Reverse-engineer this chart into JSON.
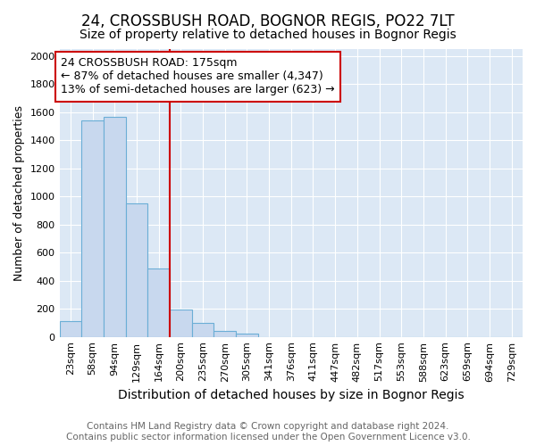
{
  "title": "24, CROSSBUSH ROAD, BOGNOR REGIS, PO22 7LT",
  "subtitle": "Size of property relative to detached houses in Bognor Regis",
  "xlabel": "Distribution of detached houses by size in Bognor Regis",
  "ylabel": "Number of detached properties",
  "categories": [
    "23sqm",
    "58sqm",
    "94sqm",
    "129sqm",
    "164sqm",
    "200sqm",
    "235sqm",
    "270sqm",
    "305sqm",
    "341sqm",
    "376sqm",
    "411sqm",
    "447sqm",
    "482sqm",
    "517sqm",
    "553sqm",
    "588sqm",
    "623sqm",
    "659sqm",
    "694sqm",
    "729sqm"
  ],
  "values": [
    115,
    1540,
    1570,
    950,
    485,
    195,
    100,
    40,
    25,
    0,
    0,
    0,
    0,
    0,
    0,
    0,
    0,
    0,
    0,
    0,
    0
  ],
  "bar_color": "#c8d8ee",
  "bar_edge_color": "#6baed6",
  "red_line_x": 4.5,
  "ylim": [
    0,
    2050
  ],
  "yticks": [
    0,
    200,
    400,
    600,
    800,
    1000,
    1200,
    1400,
    1600,
    1800,
    2000
  ],
  "annotation_text": "24 CROSSBUSH ROAD: 175sqm\n← 87% of detached houses are smaller (4,347)\n13% of semi-detached houses are larger (623) →",
  "annotation_box_color": "#ffffff",
  "annotation_box_edge": "#cc0000",
  "footer_line1": "Contains HM Land Registry data © Crown copyright and database right 2024.",
  "footer_line2": "Contains public sector information licensed under the Open Government Licence v3.0.",
  "fig_background_color": "#ffffff",
  "plot_bg_color": "#dce8f5",
  "title_fontsize": 12,
  "subtitle_fontsize": 10,
  "xlabel_fontsize": 10,
  "ylabel_fontsize": 9,
  "tick_fontsize": 8,
  "footer_fontsize": 7.5,
  "annotation_fontsize": 9
}
